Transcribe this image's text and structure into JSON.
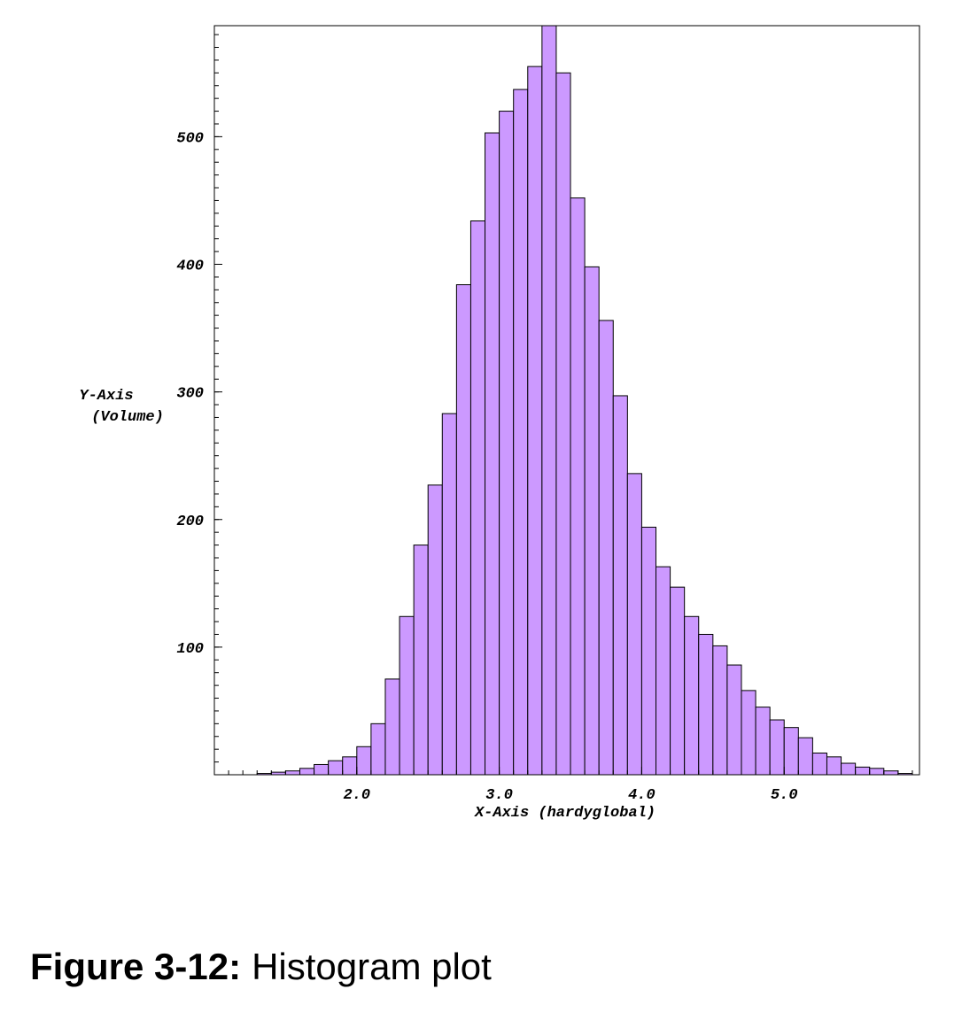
{
  "chart_data": {
    "type": "bar",
    "histogram": true,
    "bin_edges_start": 1.3,
    "bin_width": 0.1,
    "values": [
      1,
      2,
      3,
      5,
      8,
      11,
      14,
      22,
      40,
      75,
      124,
      180,
      227,
      283,
      384,
      434,
      503,
      520,
      537,
      555,
      595,
      550,
      452,
      398,
      356,
      297,
      236,
      194,
      163,
      147,
      124,
      110,
      101,
      86,
      66,
      53,
      43,
      37,
      29,
      17,
      14,
      9,
      6,
      5,
      3,
      1
    ],
    "xlabel": "X-Axis (hardyglobal)",
    "ylabel_line1": "Y-Axis",
    "ylabel_line2": "(Volume)",
    "xlim": [
      1.0,
      5.95
    ],
    "ylim": [
      0,
      587
    ],
    "x_ticks": [
      {
        "value": 2.0,
        "label": "2.0"
      },
      {
        "value": 3.0,
        "label": "3.0"
      },
      {
        "value": 4.0,
        "label": "4.0"
      },
      {
        "value": 5.0,
        "label": "5.0"
      }
    ],
    "y_ticks": [
      {
        "value": 100,
        "label": "100"
      },
      {
        "value": 200,
        "label": "200"
      },
      {
        "value": 300,
        "label": "300"
      },
      {
        "value": 400,
        "label": "400"
      },
      {
        "value": 500,
        "label": "500"
      }
    ],
    "bar_color": "#cc99ff",
    "bar_edge_color": "#000000",
    "grid": false,
    "legend": "none"
  },
  "caption": {
    "figure_number": "Figure 3-12:",
    "text": "Histogram plot"
  }
}
